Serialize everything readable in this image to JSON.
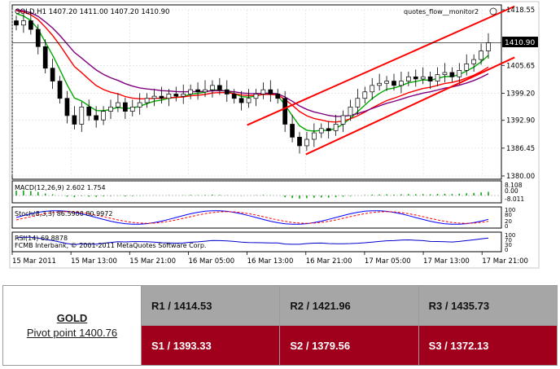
{
  "chart": {
    "symbol_info": "GOLD,H1  1407.20 1411.00 1407.20 1410.90",
    "indicator_name": "quotes_flow__monitor2",
    "current_price": "1410.90",
    "price_ticks": [
      "1418.55",
      "1405.65",
      "1399.20",
      "1392.90",
      "1386.45",
      "1380.00"
    ],
    "price_ylim": [
      1380.0,
      1418.55
    ],
    "macd_label": "MACD(12,26,9) 2.602 1.754",
    "macd_ticks": [
      "8.108",
      "0.00",
      "-8.011"
    ],
    "stoch_label": "Stoch(8,3,3) 86.5900 80.9972",
    "stoch_ticks": [
      "100",
      "80",
      "20",
      "0"
    ],
    "rsi_label": "RSI(14) 69.8878",
    "rsi_ticks": [
      "100",
      "70",
      "30",
      "0"
    ],
    "copyright": "FCMB Interbank, © 2001-2011 MetaQuotes Software Corp.",
    "time_ticks": [
      "15 Mar 2011",
      "15 Mar 13:00",
      "15 Mar 21:00",
      "16 Mar 05:00",
      "16 Mar 13:00",
      "16 Mar 21:00",
      "17 Mar 05:00",
      "17 Mar 13:00",
      "17 Mar 21:00"
    ],
    "colors": {
      "candle_up": "#00aa00",
      "ema_fast": "#00aa00",
      "ema_mid": "#ff0000",
      "ema_slow": "#800080",
      "channel": "#ff0000",
      "stoch_main": "#0000ff",
      "stoch_signal": "#ff0000",
      "rsi": "#0000cc",
      "macd": "#00a000"
    },
    "channel_upper": {
      "from": [
        "16 Mar 13:00",
        1391.8
      ],
      "to": [
        "17 Mar 21:00",
        1416.0
      ]
    },
    "channel_lower": {
      "from": [
        "16 Mar 21:00",
        1385.0
      ],
      "to": [
        "17 Mar 21:00",
        1404.0
      ]
    },
    "series": {
      "close": [
        1415.0,
        1416.0,
        1414.0,
        1410.0,
        1405.0,
        1402.0,
        1398.0,
        1394.0,
        1392.0,
        1396.0,
        1394.0,
        1393.0,
        1395.0,
        1396.0,
        1397.0,
        1395.0,
        1396.0,
        1397.0,
        1398.0,
        1398.5,
        1398.0,
        1399.0,
        1398.5,
        1399.0,
        1400.0,
        1399.5,
        1400.0,
        1401.0,
        1400.0,
        1399.0,
        1398.0,
        1397.0,
        1398.0,
        1399.0,
        1400.0,
        1399.0,
        1398.0,
        1392.0,
        1389.0,
        1387.0,
        1388.5,
        1390.0,
        1391.0,
        1390.5,
        1392.0,
        1394.0,
        1396.0,
        1398.0,
        1399.5,
        1401.0,
        1401.5,
        1402.0,
        1401.0,
        1402.0,
        1403.0,
        1402.5,
        1403.0,
        1402.0,
        1403.5,
        1404.0,
        1403.0,
        1404.5,
        1406.0,
        1407.0,
        1409.0,
        1410.9
      ]
    }
  },
  "pivot": {
    "symbol": "GOLD",
    "pivot_point": "Pivot point 1400.76",
    "r1": "R1 / 1414.53",
    "r2": "R2 / 1421.96",
    "r3": "R3 / 1435.73",
    "s1": "S1 / 1393.33",
    "s2": "S2 / 1379.56",
    "s3": "S3 / 1372.13",
    "colors": {
      "resistance_bg": "#a6a6a6",
      "support_bg": "#a0001c"
    }
  }
}
